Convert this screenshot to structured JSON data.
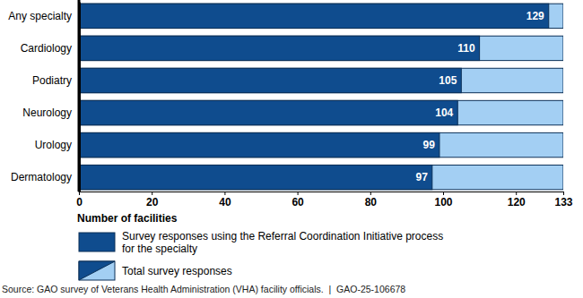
{
  "chart_data": {
    "type": "bar",
    "orientation": "horizontal",
    "categories": [
      "Any specialty",
      "Cardiology",
      "Podiatry",
      "Neurology",
      "Urology",
      "Dermatology"
    ],
    "series": [
      {
        "name": "Survey responses using the Referral Coordination Initiative process for the specialty",
        "color": "#0f4c8e",
        "values": [
          129,
          110,
          105,
          104,
          99,
          97
        ],
        "data_labels": true
      },
      {
        "name": "Total survey responses",
        "color": "#a3cff3",
        "values": [
          133,
          133,
          133,
          133,
          133,
          133
        ]
      }
    ],
    "x_label": "Number of facilities",
    "xlim": [
      0,
      133
    ],
    "xticks": [
      0,
      20,
      40,
      60,
      80,
      100,
      120,
      133
    ],
    "grid": false,
    "source": "Source: GAO survey of Veterans Health Administration (VHA) facility officials.  |  GAO-25-106678"
  }
}
